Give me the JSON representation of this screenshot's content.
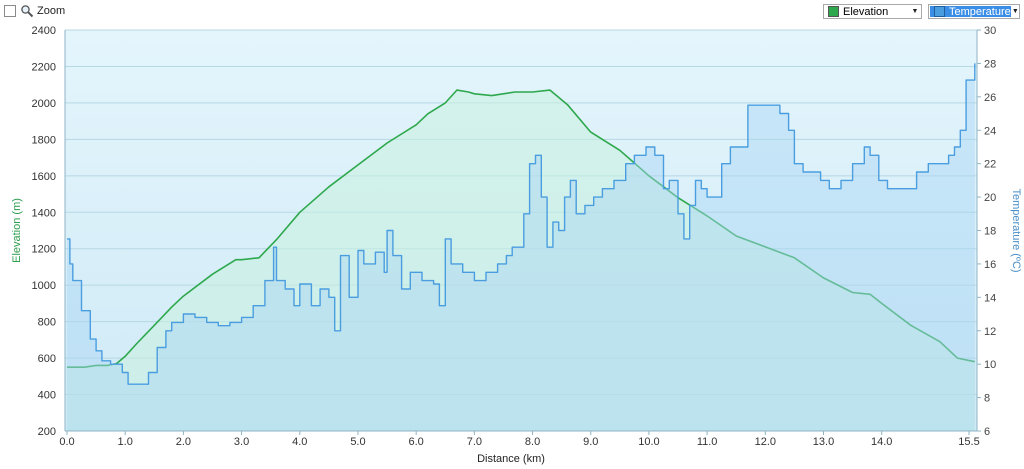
{
  "toolbar": {
    "zoom_label": "Zoom",
    "elevation_select": "Elevation",
    "temperature_select": "Temperature"
  },
  "colors": {
    "elevation": "#2ea84d",
    "temperature": "#4a9ee0",
    "plot_bg_top": "#dff3fb",
    "plot_bg_bottom": "#cdeaf6"
  },
  "chart_data": {
    "type": "line",
    "xlabel": "Distance  (km)",
    "ylabel_left": "Elevation (m)",
    "ylabel_right": "Temperature (ºC)",
    "xlim": [
      0,
      15.6
    ],
    "ylim_left": [
      200,
      2400
    ],
    "ylim_right": [
      6,
      30
    ],
    "x_ticks": [
      "0.0",
      "1.0",
      "2.0",
      "3.0",
      "4.0",
      "5.0",
      "6.0",
      "7.0",
      "8.0",
      "9.0",
      "10.0",
      "11.0",
      "12.0",
      "13.0",
      "14.0",
      "15.5"
    ],
    "y_ticks_left": [
      "200",
      "400",
      "600",
      "800",
      "1000",
      "1200",
      "1400",
      "1600",
      "1800",
      "2000",
      "2200",
      "2400"
    ],
    "y_ticks_right": [
      "6",
      "8",
      "10",
      "12",
      "14",
      "16",
      "18",
      "20",
      "22",
      "24",
      "26",
      "28",
      "30"
    ],
    "grid": true,
    "series": [
      {
        "name": "Elevation",
        "axis": "left",
        "x": [
          0,
          0.3,
          0.5,
          0.7,
          0.85,
          1.0,
          1.2,
          1.5,
          1.8,
          2.0,
          2.5,
          2.9,
          3.0,
          3.3,
          3.6,
          4.0,
          4.5,
          5.0,
          5.5,
          6.0,
          6.2,
          6.5,
          6.7,
          6.9,
          7.0,
          7.3,
          7.7,
          8.0,
          8.3,
          8.6,
          9.0,
          9.5,
          10.0,
          10.5,
          11.0,
          11.5,
          12.0,
          12.5,
          13.0,
          13.5,
          13.8,
          14.0,
          14.5,
          15.0,
          15.3,
          15.6
        ],
        "values": [
          550,
          550,
          560,
          560,
          570,
          610,
          680,
          780,
          880,
          940,
          1060,
          1140,
          1140,
          1150,
          1250,
          1400,
          1540,
          1660,
          1780,
          1880,
          1940,
          2000,
          2070,
          2060,
          2050,
          2040,
          2060,
          2060,
          2070,
          1990,
          1840,
          1740,
          1600,
          1480,
          1380,
          1270,
          1210,
          1150,
          1040,
          960,
          950,
          900,
          780,
          690,
          600,
          580
        ]
      },
      {
        "name": "Temperature",
        "axis": "right",
        "x": [
          0,
          0.05,
          0.1,
          0.25,
          0.4,
          0.5,
          0.6,
          0.75,
          0.85,
          0.95,
          1.05,
          1.25,
          1.4,
          1.55,
          1.7,
          1.8,
          2.0,
          2.2,
          2.4,
          2.6,
          2.8,
          3.0,
          3.2,
          3.4,
          3.55,
          3.6,
          3.75,
          3.9,
          4.0,
          4.2,
          4.35,
          4.5,
          4.6,
          4.7,
          4.85,
          5.0,
          5.1,
          5.3,
          5.45,
          5.5,
          5.6,
          5.75,
          5.9,
          6.1,
          6.3,
          6.4,
          6.5,
          6.6,
          6.8,
          7.0,
          7.2,
          7.4,
          7.55,
          7.65,
          7.75,
          7.85,
          7.95,
          8.05,
          8.15,
          8.25,
          8.35,
          8.45,
          8.55,
          8.65,
          8.75,
          8.9,
          9.05,
          9.2,
          9.4,
          9.6,
          9.75,
          9.85,
          9.95,
          10.1,
          10.25,
          10.35,
          10.5,
          10.6,
          10.7,
          10.8,
          10.9,
          11.0,
          11.1,
          11.25,
          11.4,
          11.55,
          11.7,
          11.9,
          12.1,
          12.25,
          12.4,
          12.5,
          12.65,
          12.8,
          12.95,
          13.1,
          13.3,
          13.5,
          13.7,
          13.8,
          13.95,
          14.1,
          14.25,
          14.4,
          14.6,
          14.8,
          15.0,
          15.15,
          15.25,
          15.35,
          15.45,
          15.6
        ],
        "values": [
          17.5,
          16,
          15,
          13.2,
          11.5,
          10.8,
          10.2,
          10,
          10,
          9.5,
          8.8,
          8.8,
          9.5,
          11,
          12,
          12.5,
          13,
          12.8,
          12.5,
          12.3,
          12.5,
          12.8,
          13.5,
          15,
          17,
          15,
          14.5,
          13.5,
          14.8,
          13.5,
          14.5,
          14,
          12,
          16.5,
          14,
          16.8,
          16,
          16.7,
          15.5,
          18,
          16.5,
          14.5,
          15.5,
          15,
          14.8,
          13.5,
          17.5,
          16,
          15.5,
          15,
          15.5,
          16,
          16.5,
          17,
          17,
          19,
          22,
          22.5,
          20,
          17,
          18.5,
          18,
          20,
          21,
          19,
          19.5,
          20,
          20.5,
          21,
          22,
          22.5,
          22.5,
          23,
          22.5,
          20.5,
          21,
          19,
          17.5,
          19.5,
          21,
          20.5,
          20,
          20,
          22,
          23,
          23,
          25.5,
          25.5,
          25.5,
          25,
          24,
          22,
          21.5,
          21.5,
          21,
          20.5,
          21,
          22,
          23,
          22.5,
          21,
          20.5,
          20.5,
          20.5,
          21.5,
          22,
          22,
          22.5,
          23,
          24,
          27,
          28
        ]
      }
    ]
  }
}
